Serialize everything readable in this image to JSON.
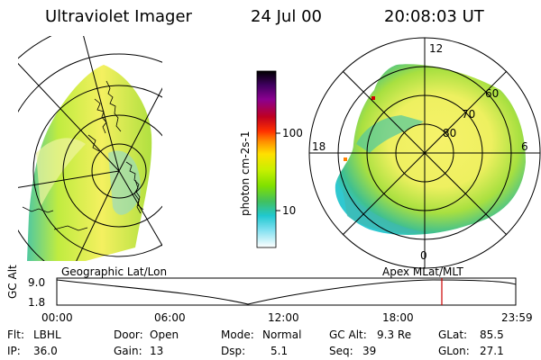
{
  "header": {
    "instrument": "Ultraviolet Imager",
    "date": "24 Jul 00",
    "time": "20:08:03 UT"
  },
  "geo_panel": {
    "label": "Geographic Lat/Lon"
  },
  "polar_panel": {
    "label": "Apex MLat/MLT",
    "mlt_labels": [
      "12",
      "18",
      "6",
      "0"
    ],
    "mlat_labels": [
      "60",
      "70",
      "80"
    ]
  },
  "colorbar": {
    "unit_label": "photon cm-2s-1",
    "ticks": [
      "100",
      "10"
    ],
    "colors": [
      "#000000",
      "#400060",
      "#8a0090",
      "#c00020",
      "#ff3000",
      "#ff9000",
      "#ffe000",
      "#c8f000",
      "#80e000",
      "#40c060",
      "#20c8d0",
      "#80e0f0",
      "#ffffff"
    ]
  },
  "timeline": {
    "y_title": "GC Alt",
    "y_ticks": [
      "9.0",
      "1.8"
    ],
    "x_ticks": [
      "00:00",
      "06:00",
      "12:00",
      "18:00",
      "23:59"
    ],
    "marker_time": "20:08",
    "marker_color": "#cc0000"
  },
  "status": {
    "flt_label": "Flt:",
    "flt_value": "LBHL",
    "ip_label": "IP:",
    "ip_value": "36.0",
    "door_label": "Door:",
    "door_value": "Open",
    "gain_label": "Gain:",
    "gain_value": "13",
    "mode_label": "Mode:",
    "mode_value": "Normal",
    "dsp_label": "Dsp:",
    "dsp_value": "5.1",
    "gcalt_label": "GC Alt:",
    "gcalt_value": "9.3 Re",
    "seq_label": "Seq:",
    "seq_value": "39",
    "glat_label": "GLat:",
    "glat_value": "85.5",
    "glon_label": "GLon:",
    "glon_value": "27.1"
  }
}
